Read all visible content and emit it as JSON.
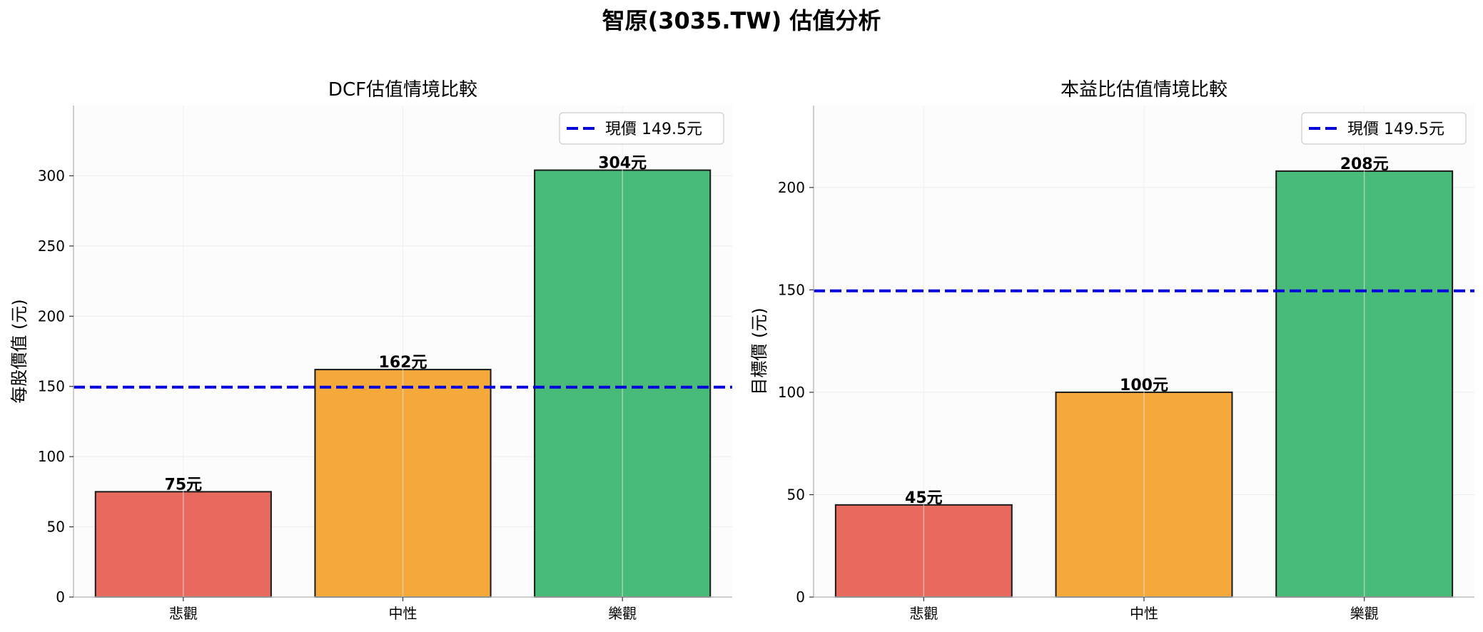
{
  "figure_title": "智原(3035.TW) 估值分析",
  "chart_data": [
    {
      "type": "bar",
      "title": "DCF估值情境比較",
      "xlabel": "",
      "ylabel": "每股價值 (元)",
      "categories": [
        "悲觀",
        "中性",
        "樂觀"
      ],
      "values": [
        75,
        162,
        304
      ],
      "value_labels": [
        "75元",
        "162元",
        "304元"
      ],
      "bar_colors": [
        "#e8695d",
        "#f5a93a",
        "#48bb78"
      ],
      "ylim": [
        0,
        350
      ],
      "yticks": [
        0,
        50,
        100,
        150,
        200,
        250,
        300
      ],
      "reference_line": {
        "value": 149.5,
        "label": "現價 149.5元",
        "color": "#0000dd",
        "style": "dashed"
      },
      "legend_position": "top-right",
      "grid": true
    },
    {
      "type": "bar",
      "title": "本益比估值情境比較",
      "xlabel": "",
      "ylabel": "目標價 (元)",
      "categories": [
        "悲觀",
        "中性",
        "樂觀"
      ],
      "values": [
        45,
        100,
        208
      ],
      "value_labels": [
        "45元",
        "100元",
        "208元"
      ],
      "bar_colors": [
        "#e8695d",
        "#f5a93a",
        "#48bb78"
      ],
      "ylim": [
        0,
        240
      ],
      "yticks": [
        0,
        50,
        100,
        150,
        200
      ],
      "reference_line": {
        "value": 149.5,
        "label": "現價 149.5元",
        "color": "#0000dd",
        "style": "dashed"
      },
      "legend_position": "top-right",
      "grid": true
    }
  ]
}
